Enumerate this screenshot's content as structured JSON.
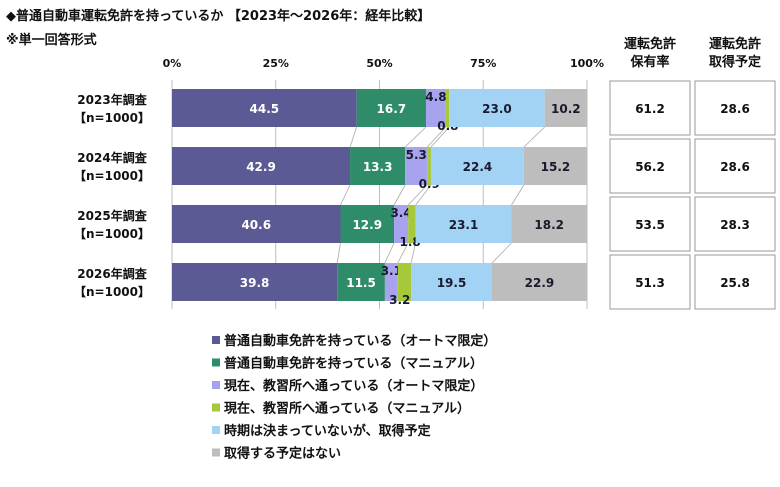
{
  "title": "◆普通自動車運転免許を持っているか 【2023年～2026年：経年比較】",
  "subtitle": "※単一回答形式",
  "chart_data": {
    "type": "bar",
    "orientation": "horizontal",
    "stacked": true,
    "xlim": [
      0,
      100
    ],
    "xticks": [
      "0%",
      "25%",
      "50%",
      "75%",
      "100%"
    ],
    "grid": true,
    "legend_position": "bottom",
    "categories": [
      {
        "label": "2023年調査",
        "n": "【n=1000】"
      },
      {
        "label": "2024年調査",
        "n": "【n=1000】"
      },
      {
        "label": "2025年調査",
        "n": "【n=1000】"
      },
      {
        "label": "2026年調査",
        "n": "【n=1000】"
      }
    ],
    "series": [
      {
        "name": "普通自動車免許を持っている（オートマ限定）",
        "color": "#5b5a94",
        "values": [
          44.5,
          42.9,
          40.6,
          39.8
        ]
      },
      {
        "name": "普通自動車免許を持っている（マニュアル）",
        "color": "#2f8c68",
        "values": [
          16.7,
          13.3,
          12.9,
          11.5
        ]
      },
      {
        "name": "現在、教習所へ通っている（オートマ限定）",
        "color": "#a8a3ee",
        "values": [
          4.8,
          5.3,
          3.4,
          3.1
        ]
      },
      {
        "name": "現在、教習所へ通っている（マニュアル）",
        "color": "#a6c93a",
        "values": [
          0.8,
          0.9,
          1.8,
          3.2
        ]
      },
      {
        "name": "時期は決まっていないが、取得予定",
        "color": "#a2d3f4",
        "values": [
          23.0,
          22.4,
          23.1,
          19.5
        ]
      },
      {
        "name": "取得する予定はない",
        "color": "#bdbdbd",
        "values": [
          10.2,
          15.2,
          18.2,
          22.9
        ]
      }
    ],
    "side_columns": [
      {
        "header": [
          "運転免許",
          "保有率"
        ],
        "values": [
          "61.2",
          "56.2",
          "53.5",
          "51.3"
        ]
      },
      {
        "header": [
          "運転免許",
          "取得予定"
        ],
        "values": [
          "28.6",
          "28.6",
          "28.3",
          "25.8"
        ]
      }
    ]
  }
}
